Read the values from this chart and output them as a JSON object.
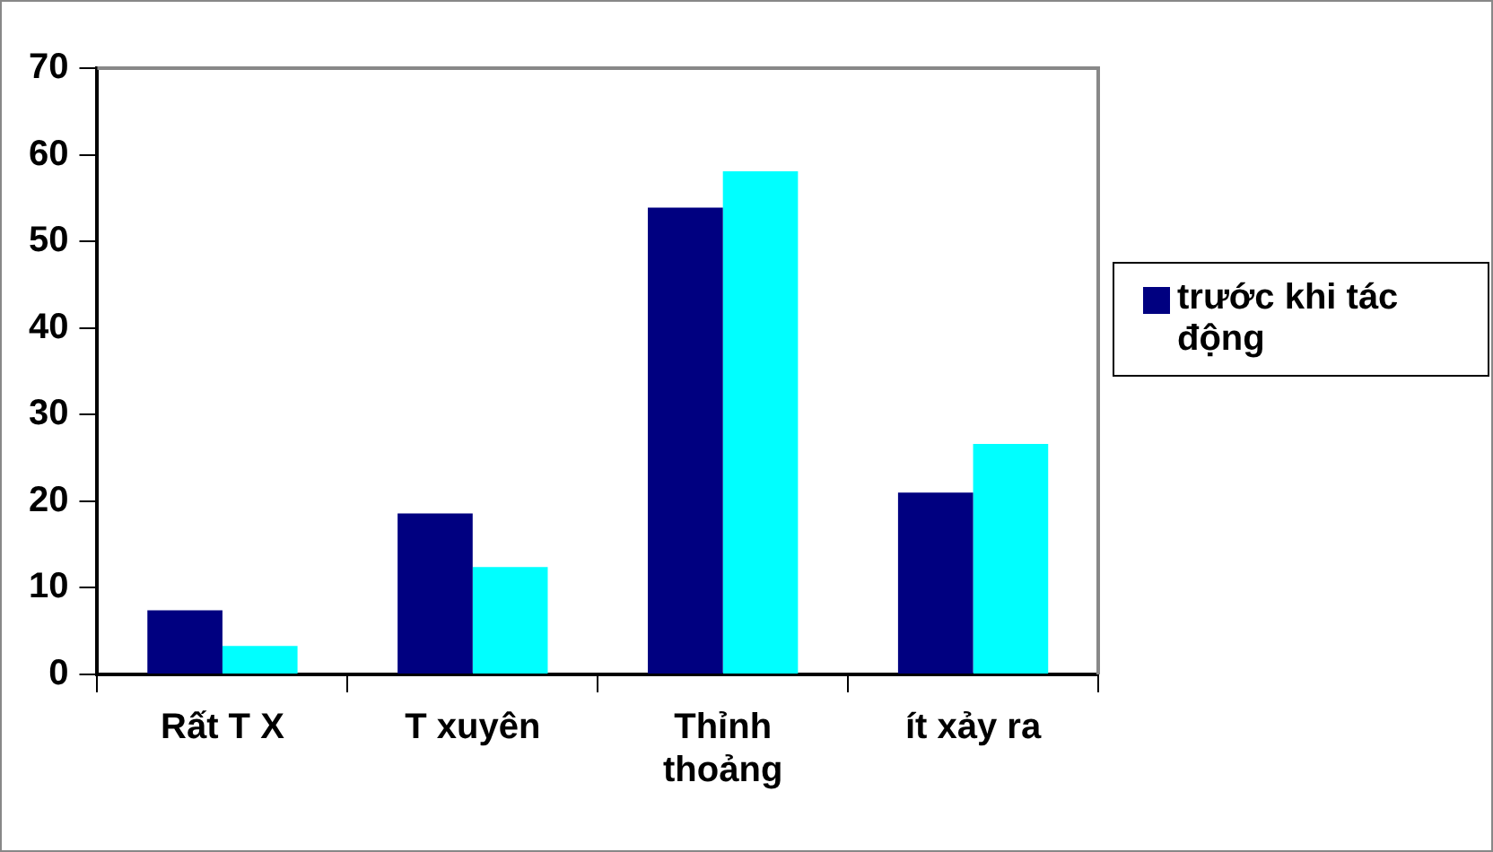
{
  "chart_data": {
    "type": "bar",
    "categories": [
      "Rất T X",
      "T xuyên",
      "Thỉnh thoảng",
      "ít xảy ra"
    ],
    "series": [
      {
        "name": "trước khi tác động",
        "color": "#000080",
        "values": [
          7.4,
          18.6,
          53.9,
          21.0
        ]
      },
      {
        "color": "#00ffff",
        "values": [
          3.3,
          12.4,
          58.1,
          26.6
        ]
      }
    ],
    "ylim": [
      0,
      70
    ],
    "yticks": [
      0,
      10,
      20,
      30,
      40,
      50,
      60,
      70
    ],
    "grid": false,
    "legend": "right"
  }
}
